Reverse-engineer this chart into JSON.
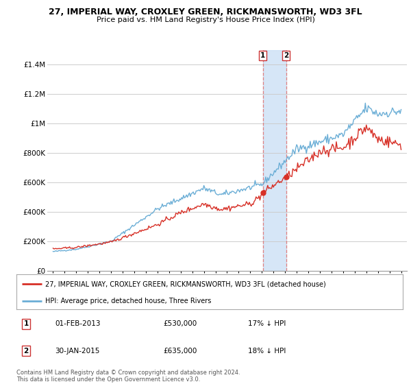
{
  "title": "27, IMPERIAL WAY, CROXLEY GREEN, RICKMANSWORTH, WD3 3FL",
  "subtitle": "Price paid vs. HM Land Registry's House Price Index (HPI)",
  "ylim": [
    0,
    1500000
  ],
  "yticks": [
    0,
    200000,
    400000,
    600000,
    800000,
    1000000,
    1200000,
    1400000
  ],
  "ytick_labels": [
    "£0",
    "£200K",
    "£400K",
    "£600K",
    "£800K",
    "£1M",
    "£1.2M",
    "£1.4M"
  ],
  "hpi_color": "#6baed6",
  "price_color": "#d73027",
  "marker1_year": 2013.08,
  "marker2_year": 2015.08,
  "marker1_price": 530000,
  "marker2_price": 635000,
  "legend_line1": "27, IMPERIAL WAY, CROXLEY GREEN, RICKMANSWORTH, WD3 3FL (detached house)",
  "legend_line2": "HPI: Average price, detached house, Three Rivers",
  "annotation1_date": "01-FEB-2013",
  "annotation1_price": "£530,000",
  "annotation1_hpi": "17% ↓ HPI",
  "annotation2_date": "30-JAN-2015",
  "annotation2_price": "£635,000",
  "annotation2_hpi": "18% ↓ HPI",
  "footer": "Contains HM Land Registry data © Crown copyright and database right 2024.\nThis data is licensed under the Open Government Licence v3.0.",
  "background_color": "#ffffff",
  "grid_color": "#cccccc",
  "shade_color": "#cce0f5",
  "vline_color": "#e08080"
}
